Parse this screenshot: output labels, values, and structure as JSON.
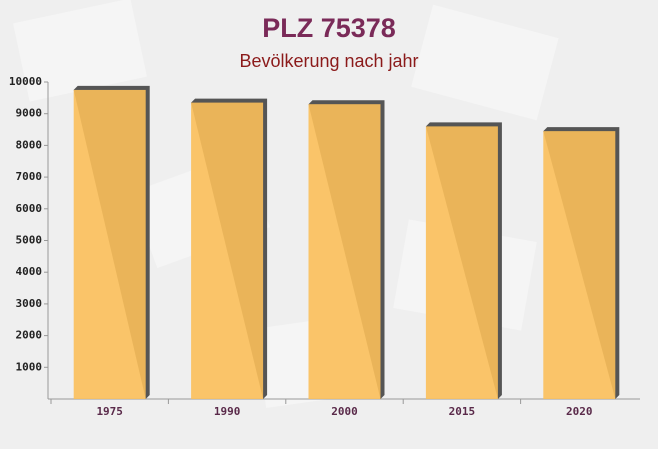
{
  "chart_data": {
    "type": "bar",
    "title": "PLZ 75378",
    "subtitle": "Bevölkerung nach jahr",
    "categories": [
      "1975",
      "1990",
      "2000",
      "2015",
      "2020"
    ],
    "values": [
      9750,
      9350,
      9300,
      8600,
      8450
    ],
    "color": "#fbbf5a",
    "ylim": [
      0,
      10000
    ],
    "yticks": [
      1000,
      2000,
      3000,
      4000,
      5000,
      6000,
      7000,
      8000,
      9000,
      10000
    ]
  }
}
